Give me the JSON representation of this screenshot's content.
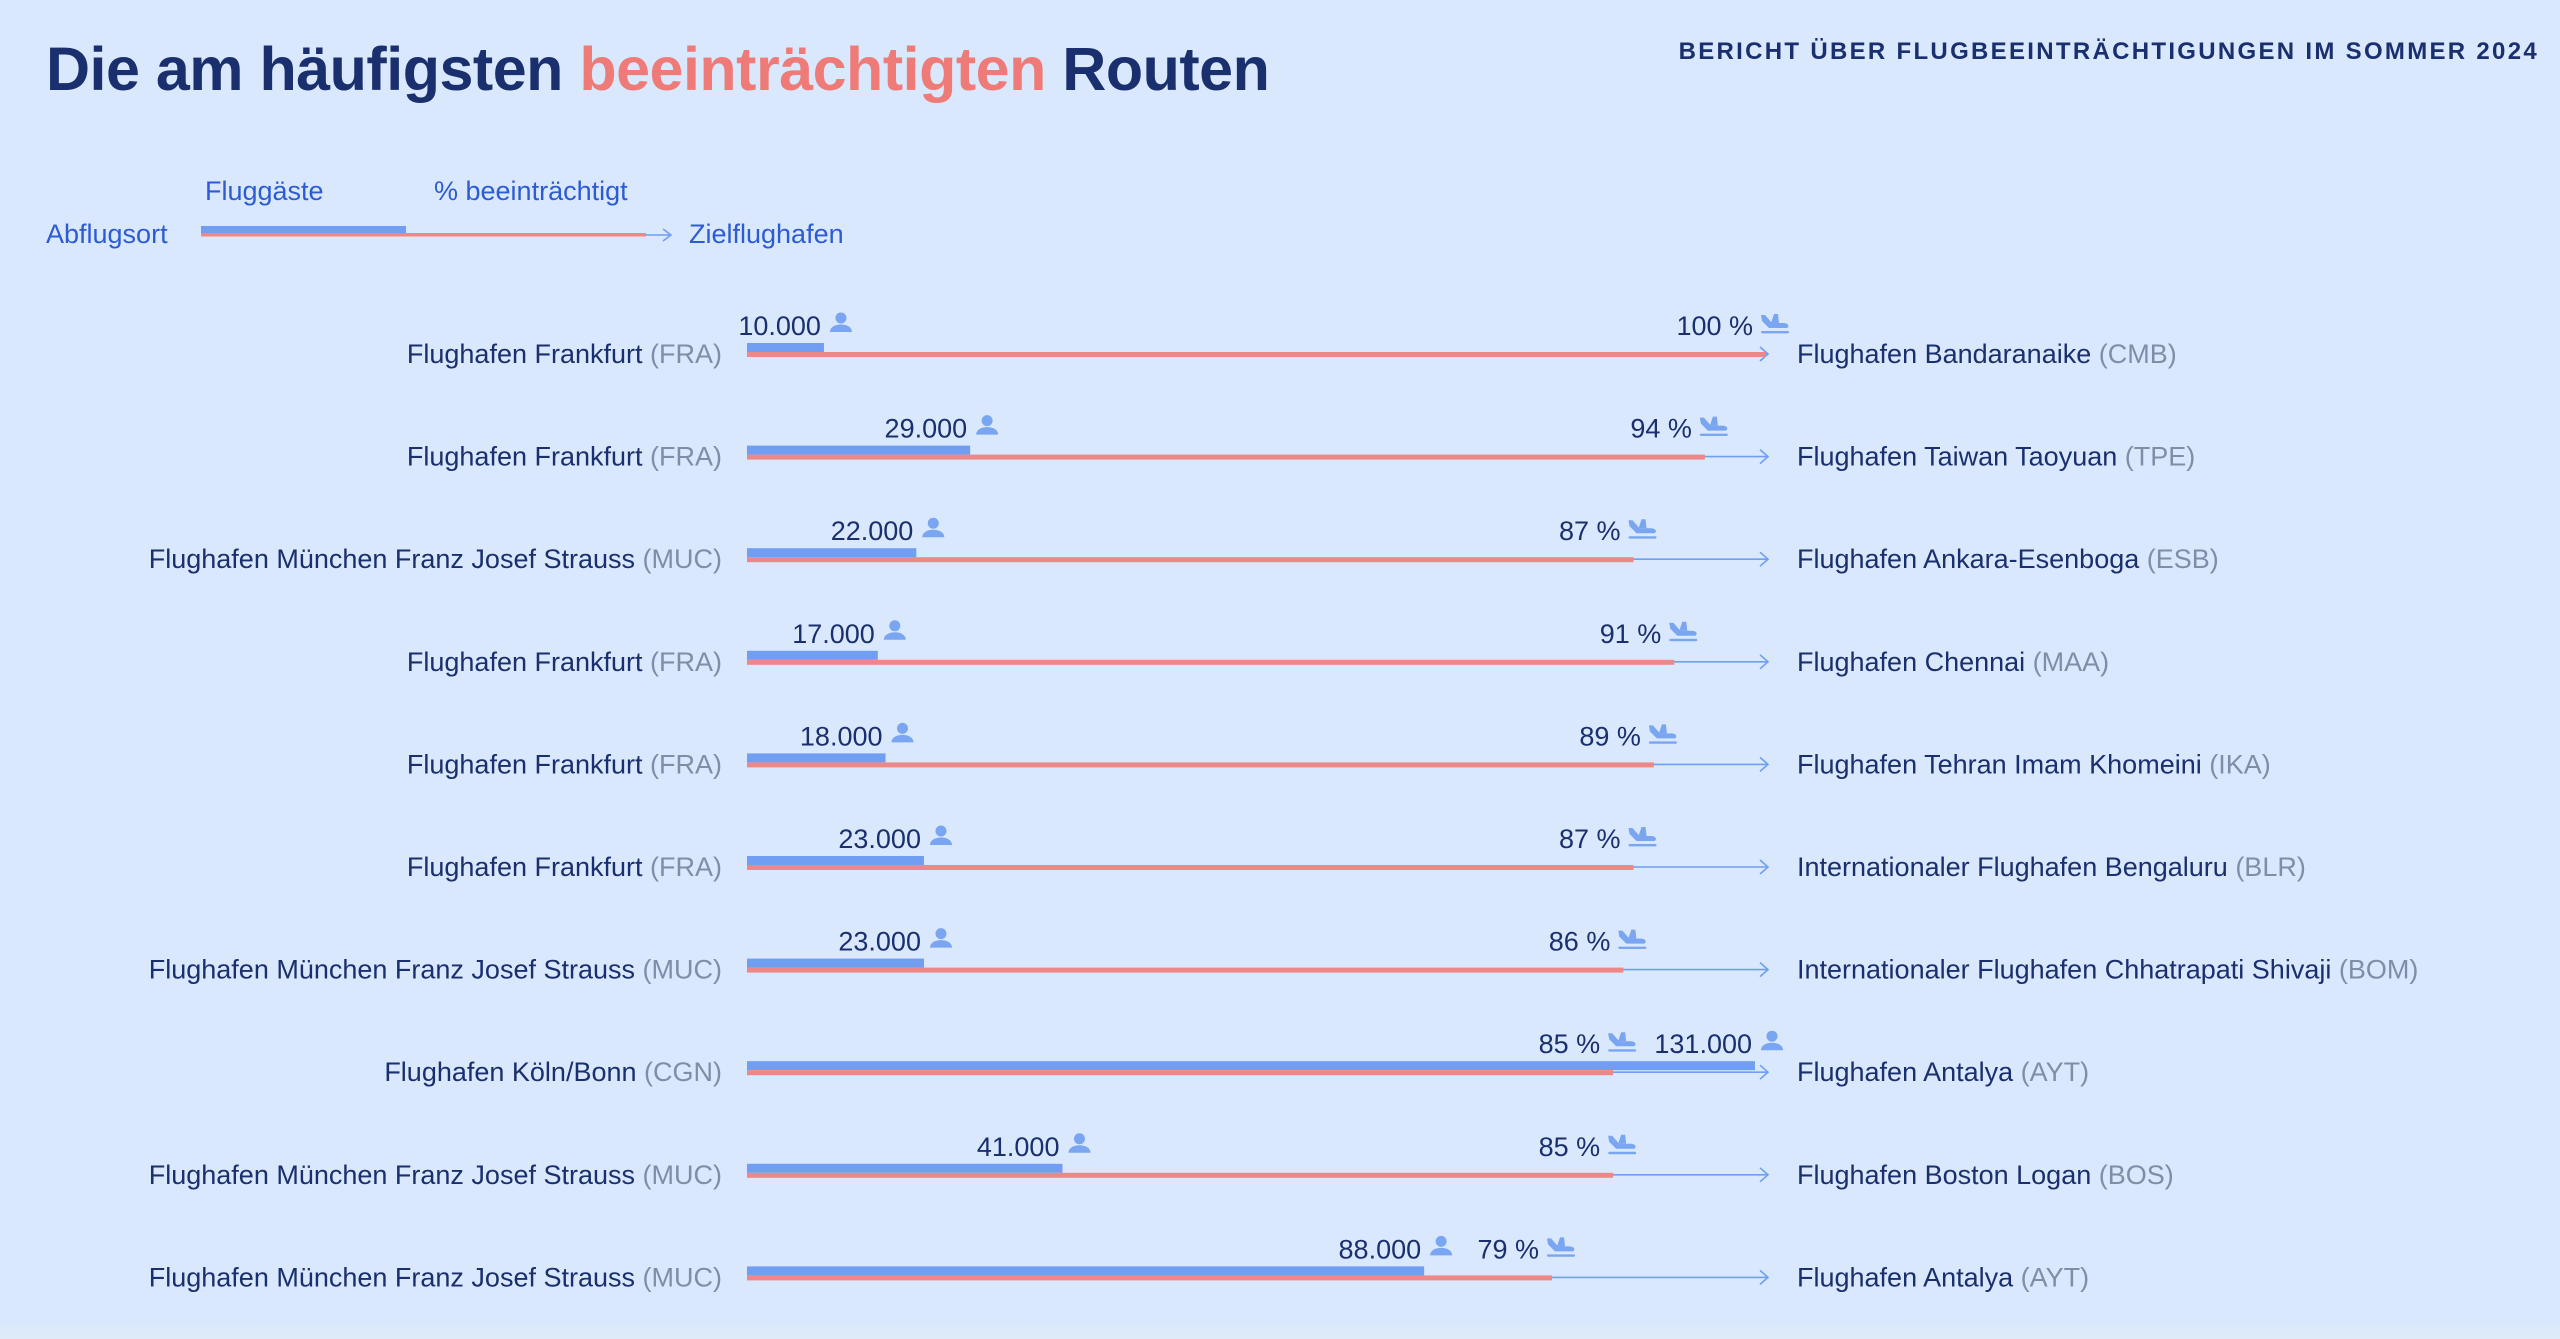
{
  "title": {
    "part1": "Die am häufigsten ",
    "highlight": "beeinträchtigten",
    "part2": " Routen"
  },
  "report_label": "BERICHT ÜBER FLUGBEEINTRÄCHTIGUNGEN IM SOMMER 2024",
  "legend": {
    "passengers": "Fluggäste",
    "percent": "% beeinträchtigt",
    "origin": "Abflugsort",
    "destination": "Zielflughafen"
  },
  "colors": {
    "background": "#d9e8fc",
    "passengers_bar": "#6f9ef2",
    "disrupted_bar": "#ee8787",
    "axis_line": "#6f9ef2",
    "title": "#1a2f6d",
    "highlight": "#ee7b78",
    "icon": "#7aa5f0",
    "code": "#7f8ea8"
  },
  "icons": {
    "passenger": "person-icon",
    "disruption": "airplane-landing-icon",
    "arrow": "arrow-right-icon"
  },
  "chart_data": {
    "type": "bar",
    "passengers_max": 131000,
    "percent_max": 100,
    "routes": [
      {
        "origin": "Flughafen Frankfurt",
        "origin_code": "(FRA)",
        "destination": "Flughafen Bandaranaike",
        "destination_code": "(CMB)",
        "passengers": 10000,
        "passengers_label": "10.000",
        "percent": 100,
        "percent_label": "100 %"
      },
      {
        "origin": "Flughafen Frankfurt",
        "origin_code": "(FRA)",
        "destination": "Flughafen Taiwan Taoyuan",
        "destination_code": "(TPE)",
        "passengers": 29000,
        "passengers_label": "29.000",
        "percent": 94,
        "percent_label": "94 %"
      },
      {
        "origin": "Flughafen München Franz Josef Strauss",
        "origin_code": "(MUC)",
        "destination": "Flughafen Ankara-Esenboga",
        "destination_code": "(ESB)",
        "passengers": 22000,
        "passengers_label": "22.000",
        "percent": 87,
        "percent_label": "87 %"
      },
      {
        "origin": "Flughafen Frankfurt",
        "origin_code": "(FRA)",
        "destination": "Flughafen Chennai",
        "destination_code": "(MAA)",
        "passengers": 17000,
        "passengers_label": "17.000",
        "percent": 91,
        "percent_label": "91 %"
      },
      {
        "origin": "Flughafen Frankfurt",
        "origin_code": "(FRA)",
        "destination": "Flughafen Tehran Imam Khomeini",
        "destination_code": "(IKA)",
        "passengers": 18000,
        "passengers_label": "18.000",
        "percent": 89,
        "percent_label": "89 %"
      },
      {
        "origin": "Flughafen Frankfurt",
        "origin_code": "(FRA)",
        "destination": "Internationaler Flughafen Bengaluru",
        "destination_code": "(BLR)",
        "passengers": 23000,
        "passengers_label": "23.000",
        "percent": 87,
        "percent_label": "87 %"
      },
      {
        "origin": "Flughafen München Franz Josef Strauss",
        "origin_code": "(MUC)",
        "destination": "Internationaler Flughafen Chhatrapati Shivaji",
        "destination_code": "(BOM)",
        "passengers": 23000,
        "passengers_label": "23.000",
        "percent": 86,
        "percent_label": "86 %"
      },
      {
        "origin": "Flughafen Köln/Bonn",
        "origin_code": "(CGN)",
        "destination": "Flughafen Antalya",
        "destination_code": "(AYT)",
        "passengers": 131000,
        "passengers_label": "131.000",
        "percent": 85,
        "percent_label": "85 %"
      },
      {
        "origin": "Flughafen München Franz Josef Strauss",
        "origin_code": "(MUC)",
        "destination": "Flughafen Boston Logan",
        "destination_code": "(BOS)",
        "passengers": 41000,
        "passengers_label": "41.000",
        "percent": 85,
        "percent_label": "85 %"
      },
      {
        "origin": "Flughafen München Franz Josef Strauss",
        "origin_code": "(MUC)",
        "destination": "Flughafen Antalya",
        "destination_code": "(AYT)",
        "passengers": 88000,
        "passengers_label": "88.000",
        "percent": 79,
        "percent_label": "79 %"
      }
    ]
  }
}
